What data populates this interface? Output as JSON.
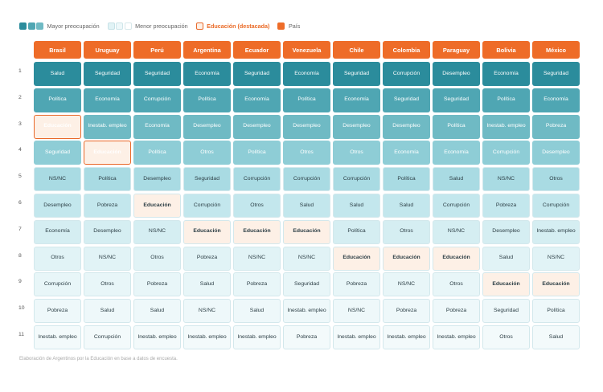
{
  "legend": {
    "mayor": "Mayor preocupación",
    "menor": "Menor preocupación",
    "educacion": "Educación (destacada)",
    "pais": "País"
  },
  "colors": {
    "orange": "#ee6c28",
    "edu_border": "#e9692a",
    "edu_bg": "#fdf0e6",
    "rank_bg": [
      "#2b8c9c",
      "#4fa6b3",
      "#6fbac4",
      "#8ecdd6",
      "#a9dbe3",
      "#c3e7ed",
      "#d5eef2",
      "#e1f3f6",
      "#e8f6f8",
      "#eef8fa",
      "#f3fafb"
    ],
    "rank_text": [
      "#ffffff",
      "#ffffff",
      "#ffffff",
      "#ffffff",
      "#2c3e45",
      "#2c3e45",
      "#2c3e45",
      "#2c3e45",
      "#2c3e45",
      "#2c3e45",
      "#2c3e45"
    ]
  },
  "chart_data": {
    "type": "table",
    "title": "",
    "countries": [
      "Brasil",
      "Uruguay",
      "Perú",
      "Argentina",
      "Ecuador",
      "Venezuela",
      "Chile",
      "Colombia",
      "Paraguay",
      "Bolivia",
      "México"
    ],
    "rows": [
      "1",
      "2",
      "3",
      "4",
      "5",
      "6",
      "7",
      "8",
      "9",
      "10",
      "11"
    ],
    "cells": [
      [
        "Salud",
        "Seguridad",
        "Seguridad",
        "Economía",
        "Seguridad",
        "Economía",
        "Seguridad",
        "Corrupción",
        "Desempleo",
        "Economía",
        "Seguridad"
      ],
      [
        "Política",
        "Economía",
        "Corrupción",
        "Política",
        "Economía",
        "Política",
        "Economía",
        "Seguridad",
        "Seguridad",
        "Política",
        "Economía"
      ],
      [
        "Educación",
        "Inestab. empleo",
        "Economía",
        "Desempleo",
        "Desempleo",
        "Desempleo",
        "Desempleo",
        "Desempleo",
        "Política",
        "Inestab. empleo",
        "Pobreza"
      ],
      [
        "Seguridad",
        "Educación",
        "Política",
        "Otros",
        "Política",
        "Otros",
        "Otros",
        "Economía",
        "Economía",
        "Corrupción",
        "Desempleo"
      ],
      [
        "NS/NC",
        "Política",
        "Desempleo",
        "Seguridad",
        "Corrupción",
        "Corrupción",
        "Corrupción",
        "Política",
        "Salud",
        "NS/NC",
        "Otros"
      ],
      [
        "Desempleo",
        "Pobreza",
        "Educación",
        "Corrupción",
        "Otros",
        "Salud",
        "Salud",
        "Salud",
        "Corrupción",
        "Pobreza",
        "Corrupción"
      ],
      [
        "Economía",
        "Desempleo",
        "NS/NC",
        "Educación",
        "Educación",
        "Educación",
        "Política",
        "Otros",
        "NS/NC",
        "Desempleo",
        "Inestab. empleo"
      ],
      [
        "Otros",
        "NS/NC",
        "Otros",
        "Pobreza",
        "NS/NC",
        "NS/NC",
        "Educación",
        "Educación",
        "Educación",
        "Salud",
        "NS/NC"
      ],
      [
        "Corrupción",
        "Otros",
        "Pobreza",
        "Salud",
        "Pobreza",
        "Seguridad",
        "Pobreza",
        "NS/NC",
        "Otros",
        "Educación",
        "Educación"
      ],
      [
        "Pobreza",
        "Salud",
        "Salud",
        "NS/NC",
        "Salud",
        "Inestab. empleo",
        "NS/NC",
        "Pobreza",
        "Pobreza",
        "Seguridad",
        "Política"
      ],
      [
        "Inestab. empleo",
        "Corrupción",
        "Inestab. empleo",
        "Inestab. empleo",
        "Inestab. empleo",
        "Pobreza",
        "Inestab. empleo",
        "Inestab. empleo",
        "Inestab. empleo",
        "Otros",
        "Salud"
      ]
    ],
    "highlight": "Educación"
  },
  "footnote": "Elaboración de Argentinos por la Educación en base a datos de encuesta."
}
